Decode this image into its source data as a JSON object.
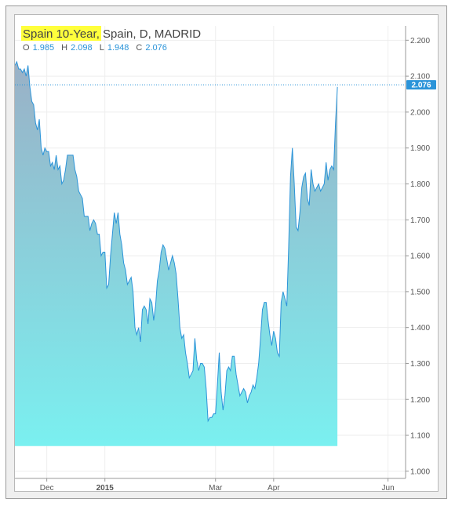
{
  "header": {
    "symbol": "Spain 10-Year",
    "rest": ", Spain, D, MADRID",
    "ohlc": [
      {
        "key": "O",
        "value": "1.985"
      },
      {
        "key": "H",
        "value": "2.098"
      },
      {
        "key": "L",
        "value": "1.948"
      },
      {
        "key": "C",
        "value": "2.076"
      }
    ]
  },
  "colors": {
    "line": "#2b94d9",
    "fill_top": "#9ab0c6",
    "fill_bottom": "#7af0f0",
    "highlight": "#ffff3c",
    "axis_text": "#555555",
    "price_tag": "#2b94d9"
  },
  "chart_data": {
    "type": "area",
    "y_axis": {
      "position": "right",
      "range": [
        0.98,
        2.24
      ],
      "ticks": [
        "1.000",
        "1.100",
        "1.200",
        "1.300",
        "1.400",
        "1.500",
        "1.600",
        "1.700",
        "1.800",
        "1.900",
        "2.000",
        "2.100",
        "2.200"
      ]
    },
    "x_axis": {
      "ticks": [
        {
          "label": "Dec",
          "bold": false,
          "day": 17
        },
        {
          "label": "2015",
          "bold": true,
          "day": 48
        },
        {
          "label": "Mar",
          "bold": false,
          "day": 107
        },
        {
          "label": "Apr",
          "bold": false,
          "day": 138
        },
        {
          "label": "Jun",
          "bold": false,
          "day": 199
        }
      ]
    },
    "last_price": 2.076,
    "last_price_label": "2.076",
    "grid": true,
    "points": [
      [
        0,
        2.13
      ],
      [
        1,
        2.14
      ],
      [
        2,
        2.12
      ],
      [
        3,
        2.12
      ],
      [
        4,
        2.11
      ],
      [
        5,
        2.12
      ],
      [
        6,
        2.1
      ],
      [
        7,
        2.13
      ],
      [
        8,
        2.07
      ],
      [
        9,
        2.03
      ],
      [
        10,
        2.02
      ],
      [
        11,
        1.97
      ],
      [
        12,
        1.95
      ],
      [
        13,
        1.98
      ],
      [
        14,
        1.9
      ],
      [
        15,
        1.88
      ],
      [
        16,
        1.9
      ],
      [
        17,
        1.89
      ],
      [
        18,
        1.89
      ],
      [
        19,
        1.85
      ],
      [
        20,
        1.86
      ],
      [
        21,
        1.84
      ],
      [
        22,
        1.88
      ],
      [
        23,
        1.84
      ],
      [
        24,
        1.85
      ],
      [
        25,
        1.8
      ],
      [
        26,
        1.81
      ],
      [
        27,
        1.84
      ],
      [
        28,
        1.88
      ],
      [
        29,
        1.88
      ],
      [
        30,
        1.88
      ],
      [
        31,
        1.88
      ],
      [
        32,
        1.84
      ],
      [
        33,
        1.82
      ],
      [
        34,
        1.78
      ],
      [
        35,
        1.77
      ],
      [
        36,
        1.76
      ],
      [
        37,
        1.71
      ],
      [
        38,
        1.71
      ],
      [
        39,
        1.71
      ],
      [
        40,
        1.67
      ],
      [
        41,
        1.69
      ],
      [
        42,
        1.7
      ],
      [
        43,
        1.69
      ],
      [
        44,
        1.66
      ],
      [
        45,
        1.66
      ],
      [
        46,
        1.6
      ],
      [
        47,
        1.61
      ],
      [
        48,
        1.61
      ],
      [
        49,
        1.51
      ],
      [
        50,
        1.52
      ],
      [
        51,
        1.6
      ],
      [
        52,
        1.66
      ],
      [
        53,
        1.72
      ],
      [
        54,
        1.69
      ],
      [
        55,
        1.72
      ],
      [
        56,
        1.66
      ],
      [
        57,
        1.63
      ],
      [
        58,
        1.58
      ],
      [
        59,
        1.56
      ],
      [
        60,
        1.52
      ],
      [
        61,
        1.53
      ],
      [
        62,
        1.54
      ],
      [
        63,
        1.5
      ],
      [
        64,
        1.4
      ],
      [
        65,
        1.38
      ],
      [
        66,
        1.4
      ],
      [
        67,
        1.36
      ],
      [
        68,
        1.45
      ],
      [
        69,
        1.46
      ],
      [
        70,
        1.45
      ],
      [
        71,
        1.41
      ],
      [
        72,
        1.48
      ],
      [
        73,
        1.47
      ],
      [
        74,
        1.42
      ],
      [
        75,
        1.46
      ],
      [
        76,
        1.53
      ],
      [
        77,
        1.56
      ],
      [
        78,
        1.61
      ],
      [
        79,
        1.63
      ],
      [
        80,
        1.62
      ],
      [
        81,
        1.59
      ],
      [
        82,
        1.56
      ],
      [
        83,
        1.58
      ],
      [
        84,
        1.6
      ],
      [
        85,
        1.58
      ],
      [
        86,
        1.55
      ],
      [
        87,
        1.48
      ],
      [
        88,
        1.4
      ],
      [
        89,
        1.37
      ],
      [
        90,
        1.38
      ],
      [
        91,
        1.33
      ],
      [
        92,
        1.3
      ],
      [
        93,
        1.26
      ],
      [
        94,
        1.27
      ],
      [
        95,
        1.28
      ],
      [
        96,
        1.37
      ],
      [
        97,
        1.31
      ],
      [
        98,
        1.28
      ],
      [
        99,
        1.3
      ],
      [
        100,
        1.3
      ],
      [
        101,
        1.29
      ],
      [
        102,
        1.23
      ],
      [
        103,
        1.14
      ],
      [
        104,
        1.15
      ],
      [
        105,
        1.15
      ],
      [
        106,
        1.16
      ],
      [
        107,
        1.16
      ],
      [
        108,
        1.24
      ],
      [
        109,
        1.33
      ],
      [
        110,
        1.22
      ],
      [
        111,
        1.17
      ],
      [
        112,
        1.21
      ],
      [
        113,
        1.28
      ],
      [
        114,
        1.29
      ],
      [
        115,
        1.28
      ],
      [
        116,
        1.32
      ],
      [
        117,
        1.32
      ],
      [
        118,
        1.27
      ],
      [
        119,
        1.24
      ],
      [
        120,
        1.21
      ],
      [
        121,
        1.22
      ],
      [
        122,
        1.23
      ],
      [
        123,
        1.22
      ],
      [
        124,
        1.19
      ],
      [
        125,
        1.21
      ],
      [
        126,
        1.22
      ],
      [
        127,
        1.24
      ],
      [
        128,
        1.23
      ],
      [
        129,
        1.26
      ],
      [
        130,
        1.3
      ],
      [
        131,
        1.37
      ],
      [
        132,
        1.45
      ],
      [
        133,
        1.47
      ],
      [
        134,
        1.47
      ],
      [
        135,
        1.42
      ],
      [
        136,
        1.38
      ],
      [
        137,
        1.35
      ],
      [
        138,
        1.39
      ],
      [
        139,
        1.37
      ],
      [
        140,
        1.33
      ],
      [
        141,
        1.32
      ],
      [
        142,
        1.47
      ],
      [
        143,
        1.5
      ],
      [
        144,
        1.48
      ],
      [
        145,
        1.46
      ],
      [
        146,
        1.62
      ],
      [
        147,
        1.82
      ],
      [
        148,
        1.9
      ],
      [
        149,
        1.8
      ],
      [
        150,
        1.68
      ],
      [
        151,
        1.67
      ],
      [
        152,
        1.72
      ],
      [
        153,
        1.79
      ],
      [
        154,
        1.82
      ],
      [
        155,
        1.83
      ],
      [
        156,
        1.76
      ],
      [
        157,
        1.74
      ],
      [
        158,
        1.84
      ],
      [
        159,
        1.8
      ],
      [
        160,
        1.78
      ],
      [
        161,
        1.79
      ],
      [
        162,
        1.8
      ],
      [
        163,
        1.78
      ],
      [
        164,
        1.79
      ],
      [
        165,
        1.8
      ],
      [
        166,
        1.86
      ],
      [
        167,
        1.81
      ],
      [
        168,
        1.84
      ],
      [
        169,
        1.85
      ],
      [
        170,
        1.84
      ],
      [
        171,
        1.97
      ],
      [
        172,
        2.07
      ]
    ],
    "x_domain": [
      0,
      200
    ]
  }
}
